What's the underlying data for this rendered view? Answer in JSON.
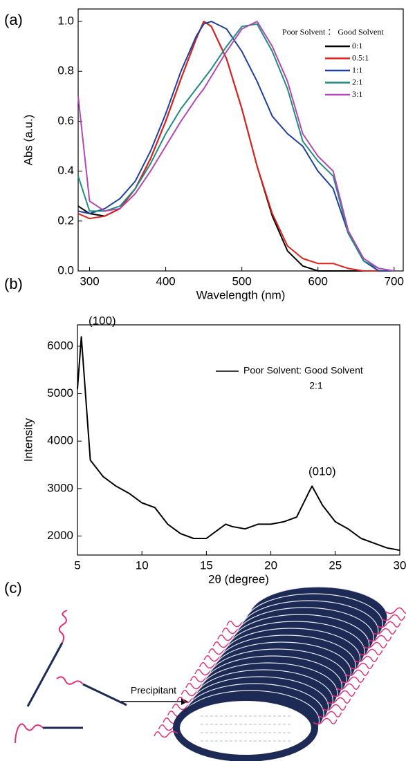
{
  "chart_data": [
    {
      "type": "line",
      "panel_label": "(a)",
      "x_label": "Wavelength (nm)",
      "y_label": "Abs (a.u.)",
      "legend_title": "Poor Solvent ： Good Solvent",
      "x": [
        285,
        300,
        320,
        340,
        360,
        380,
        400,
        420,
        440,
        450,
        460,
        480,
        500,
        520,
        540,
        560,
        580,
        600,
        620,
        640,
        660,
        680,
        700
      ],
      "series": [
        {
          "name": "0:1",
          "color": "#000000",
          "values": [
            0.26,
            0.23,
            0.22,
            0.25,
            0.33,
            0.45,
            0.6,
            0.77,
            0.93,
            1.0,
            0.98,
            0.85,
            0.65,
            0.42,
            0.22,
            0.08,
            0.02,
            0.0,
            0.0,
            0.0,
            0.0,
            0.0,
            0.0
          ]
        },
        {
          "name": "0.5:1",
          "color": "#e0201b",
          "values": [
            0.23,
            0.21,
            0.22,
            0.25,
            0.33,
            0.45,
            0.6,
            0.77,
            0.93,
            1.0,
            0.98,
            0.85,
            0.65,
            0.42,
            0.23,
            0.1,
            0.05,
            0.03,
            0.03,
            0.01,
            0.0,
            0.0,
            0.0
          ]
        },
        {
          "name": "1:1",
          "color": "#1f3f9c",
          "values": [
            0.24,
            0.23,
            0.25,
            0.29,
            0.36,
            0.48,
            0.63,
            0.8,
            0.94,
            0.99,
            1.0,
            0.97,
            0.88,
            0.76,
            0.62,
            0.55,
            0.5,
            0.4,
            0.33,
            0.15,
            0.04,
            0.0,
            0.0
          ]
        },
        {
          "name": "2:1",
          "color": "#1f8c7e",
          "values": [
            0.38,
            0.24,
            0.24,
            0.26,
            0.33,
            0.43,
            0.55,
            0.65,
            0.73,
            0.77,
            0.81,
            0.9,
            0.98,
            0.99,
            0.88,
            0.73,
            0.52,
            0.44,
            0.38,
            0.15,
            0.04,
            0.01,
            0.0
          ]
        },
        {
          "name": "3:1",
          "color": "#b048b5",
          "values": [
            0.7,
            0.28,
            0.24,
            0.25,
            0.31,
            0.4,
            0.5,
            0.6,
            0.69,
            0.73,
            0.78,
            0.88,
            0.97,
            1.0,
            0.9,
            0.76,
            0.55,
            0.46,
            0.4,
            0.16,
            0.05,
            0.01,
            0.0
          ]
        }
      ],
      "xlim": [
        285,
        712
      ],
      "xticks": [
        300,
        400,
        500,
        600,
        700
      ],
      "ylim": [
        0,
        1.05
      ],
      "yticks": [
        {
          "value": 0,
          "label": "0.0"
        },
        {
          "value": 0.2,
          "label": "0.2"
        },
        {
          "value": 0.4,
          "label": "0.4"
        },
        {
          "value": 0.6,
          "label": "0.6"
        },
        {
          "value": 0.8,
          "label": "0.8"
        },
        {
          "value": 1,
          "label": "1.0"
        }
      ]
    },
    {
      "type": "line",
      "panel_label": "(b)",
      "x_label": "2θ (degree)",
      "y_label": "Intensity",
      "legend_subtitle": "2:1",
      "annotations": [
        "(100)",
        "(010)"
      ],
      "x": [
        5,
        5.3,
        6,
        7,
        8,
        9,
        10,
        11,
        12,
        13,
        14,
        15,
        16,
        16.5,
        17,
        18,
        19,
        20,
        21,
        22,
        23,
        23.2,
        24,
        25,
        26,
        27,
        28,
        29,
        30
      ],
      "series": [
        {
          "name": "Poor Solvent: Good Solvent",
          "color": "#000000",
          "values": [
            5100,
            6200,
            3600,
            3250,
            3050,
            2900,
            2700,
            2600,
            2250,
            2050,
            1950,
            1950,
            2150,
            2250,
            2200,
            2150,
            2250,
            2250,
            2300,
            2400,
            2950,
            3050,
            2650,
            2300,
            2150,
            1950,
            1850,
            1750,
            1700
          ]
        }
      ],
      "xlim": [
        5,
        30
      ],
      "xticks": [
        5,
        10,
        15,
        20,
        25,
        30
      ],
      "ylim": [
        1600,
        6450
      ],
      "yticks": [
        2000,
        3000,
        4000,
        5000,
        6000
      ]
    }
  ],
  "diagram": {
    "panel_label": "(c)",
    "arrow_label": "Precipitant"
  }
}
